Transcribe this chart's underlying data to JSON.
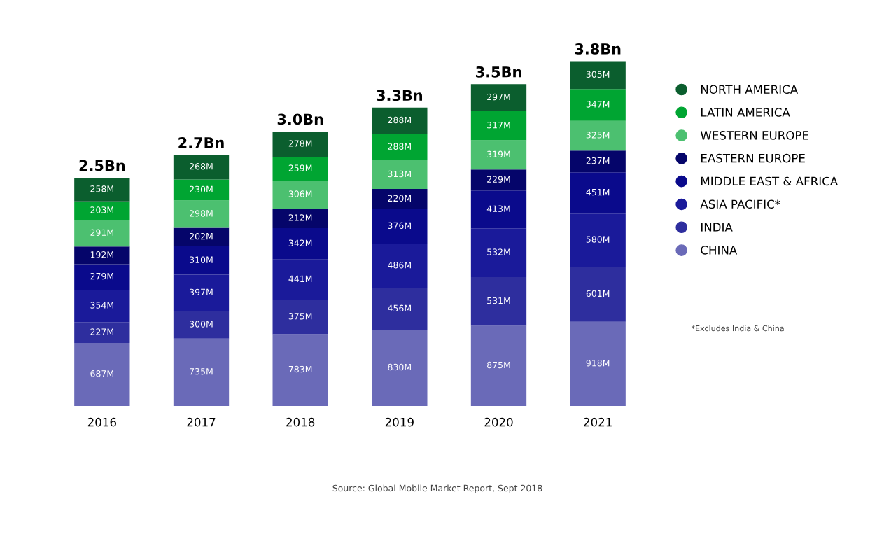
{
  "chart_data": {
    "type": "bar",
    "stacked": true,
    "categories": [
      "2016",
      "2017",
      "2018",
      "2019",
      "2020",
      "2021"
    ],
    "series": [
      {
        "name": "CHINA",
        "color": "#6a6ab8",
        "values": [
          687,
          735,
          783,
          830,
          875,
          918
        ],
        "value_labels": [
          "687M",
          "735M",
          "783M",
          "830M",
          "875M",
          "918M"
        ]
      },
      {
        "name": "INDIA",
        "color": "#2e2e9e",
        "values": [
          227,
          300,
          375,
          456,
          531,
          601
        ],
        "value_labels": [
          "227M",
          "300M",
          "375M",
          "456M",
          "531M",
          "601M"
        ]
      },
      {
        "name": "ASIA PACIFIC*",
        "color": "#1a1a9a",
        "values": [
          354,
          397,
          441,
          486,
          532,
          580
        ],
        "value_labels": [
          "354M",
          "397M",
          "441M",
          "486M",
          "532M",
          "580M"
        ]
      },
      {
        "name": "MIDDLE EAST & AFRICA",
        "color": "#0a0a8c",
        "values": [
          279,
          310,
          342,
          376,
          413,
          451
        ],
        "value_labels": [
          "279M",
          "310M",
          "342M",
          "376M",
          "413M",
          "451M"
        ]
      },
      {
        "name": "EASTERN EUROPE",
        "color": "#05056a",
        "values": [
          192,
          202,
          212,
          220,
          229,
          237
        ],
        "value_labels": [
          "192M",
          "202M",
          "212M",
          "220M",
          "229M",
          "237M"
        ]
      },
      {
        "name": "WESTERN EUROPE",
        "color": "#4cc070",
        "values": [
          291,
          298,
          306,
          313,
          319,
          325
        ],
        "value_labels": [
          "291M",
          "298M",
          "306M",
          "313M",
          "319M",
          "325M"
        ]
      },
      {
        "name": "LATIN AMERICA",
        "color": "#00a532",
        "values": [
          203,
          230,
          259,
          288,
          317,
          347
        ],
        "value_labels": [
          "203M",
          "230M",
          "259M",
          "288M",
          "317M",
          "347M"
        ]
      },
      {
        "name": "NORTH AMERICA",
        "color": "#0b5e2e",
        "values": [
          258,
          268,
          278,
          288,
          297,
          305
        ],
        "value_labels": [
          "258M",
          "268M",
          "278M",
          "288M",
          "297M",
          "305M"
        ]
      }
    ],
    "legend": "right",
    "grid": false,
    "annotations": [
      "*Excludes India & China",
      "Source: Global Mobile Market Report, Sept 2018",
      {
        "text": "2.5Bn",
        "x": "2016",
        "y": 2491
      },
      {
        "text": "2.7Bn",
        "x": "2017",
        "y": 2740
      },
      {
        "text": "3.0Bn",
        "x": "2018",
        "y": 2996
      },
      {
        "text": "3.3Bn",
        "x": "2019",
        "y": 3257
      },
      {
        "text": "3.5Bn",
        "x": "2020",
        "y": 3513
      },
      {
        "text": "3.8Bn",
        "x": "2021",
        "y": 3764
      }
    ]
  }
}
